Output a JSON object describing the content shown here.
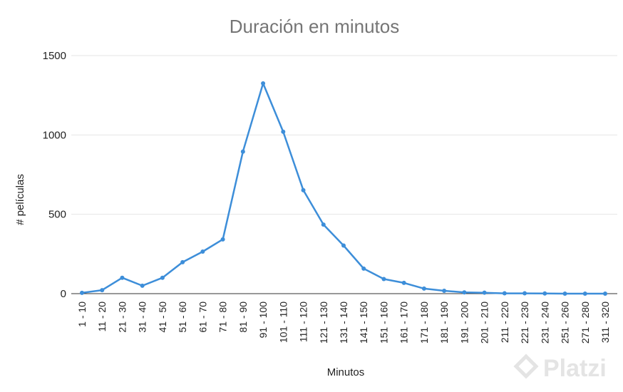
{
  "chart_data": {
    "type": "line",
    "title": "Duración en minutos",
    "xlabel": "Minutos",
    "ylabel": "# películas",
    "ylim": [
      0,
      1500
    ],
    "yticks": [
      0,
      500,
      1000,
      1500
    ],
    "grid": true,
    "legend": "none",
    "line_color": "#3d8ed9",
    "categories": [
      "1 - 10",
      "11 - 20",
      "21 - 30",
      "31 - 40",
      "41 - 50",
      "51 - 60",
      "61 - 70",
      "71 - 80",
      "81 - 90",
      "91 - 100",
      "101 - 110",
      "111 - 120",
      "121 - 130",
      "131 - 140",
      "141 - 150",
      "151 - 160",
      "161 - 170",
      "171 - 180",
      "181 - 190",
      "191 - 200",
      "201 - 210",
      "211 - 220",
      "221 - 230",
      "231 - 240",
      "251 - 260",
      "271 - 280",
      "311 - 320"
    ],
    "values": [
      5,
      22,
      100,
      50,
      100,
      198,
      265,
      342,
      895,
      1325,
      1020,
      652,
      435,
      303,
      158,
      92,
      68,
      32,
      18,
      8,
      6,
      2,
      2,
      1,
      0,
      0,
      0
    ]
  },
  "watermark": "Platzi"
}
